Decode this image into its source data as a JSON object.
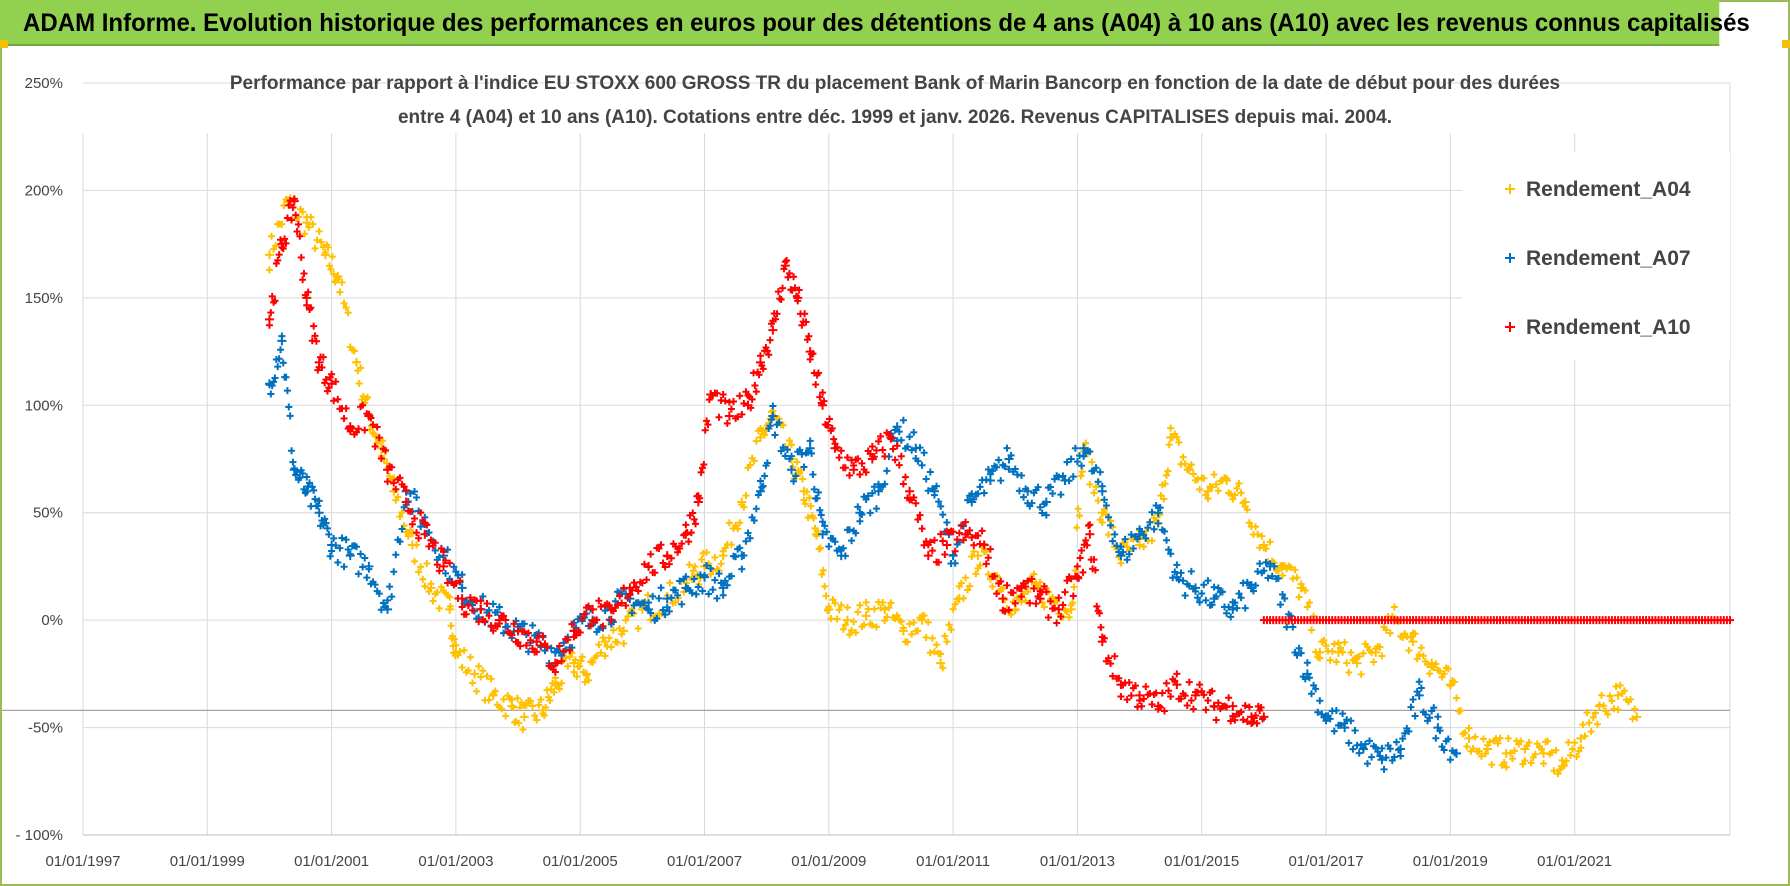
{
  "banner": {
    "title": "ADAM Informe. Evolution historique des performances en euros pour des détentions de 4 ans (A04) à 10 ans (A10) avec les revenus connus capitalisés"
  },
  "colors": {
    "banner_bg": "#92d050",
    "A04": "#ffc000",
    "A07": "#0070c0",
    "A10": "#ff0000",
    "grid": "#d9d9d9",
    "text": "#444444"
  },
  "chart_data": {
    "type": "scatter",
    "title_lines": [
      "Performance par rapport à l'indice EU STOXX 600 GROSS TR  du placement Bank of Marin Bancorp en fonction de la date de début pour des durées",
      "entre 4 (A04) et 10 ans (A10). Cotations entre déc. 1999 et janv. 2026. Revenus CAPITALISES depuis mai. 2004."
    ],
    "xlabel": "",
    "ylabel": "",
    "xlim": [
      1997.0,
      2023.5
    ],
    "ylim": [
      -100,
      250
    ],
    "x_ticks": [
      1997,
      1999,
      2001,
      2003,
      2005,
      2007,
      2009,
      2011,
      2013,
      2015,
      2017,
      2019,
      2021
    ],
    "x_tick_labels": [
      "01/01/1997",
      "01/01/1999",
      "01/01/2001",
      "01/01/2003",
      "01/01/2005",
      "01/01/2007",
      "01/01/2009",
      "01/01/2011",
      "01/01/2013",
      "01/01/2015",
      "01/01/2017",
      "01/01/2019",
      "01/01/2021"
    ],
    "y_ticks": [
      -100,
      -50,
      0,
      50,
      100,
      150,
      200,
      250
    ],
    "y_tick_labels": [
      "- 100%",
      "-50%",
      "0%",
      "50%",
      "100%",
      "150%",
      "200%",
      "250%"
    ],
    "reference_line_y": -42,
    "marker": "+",
    "legend_position": "top-right",
    "series": [
      {
        "name": "Rendement_A04",
        "key": "A04",
        "x": [
          2000.0,
          2000.3,
          2000.6,
          2000.9,
          2001.1,
          2001.4,
          2001.6,
          2001.8,
          2002.0,
          2002.3,
          2002.6,
          2002.9,
          2003.0,
          2003.3,
          2003.6,
          2003.9,
          2004.1,
          2004.4,
          2004.6,
          2004.9,
          2005.1,
          2005.4,
          2005.7,
          2006.0,
          2006.4,
          2006.8,
          2007.0,
          2007.3,
          2007.6,
          2007.9,
          2008.1,
          2008.4,
          2008.6,
          2008.8,
          2009.0,
          2009.3,
          2009.6,
          2009.9,
          2010.2,
          2010.5,
          2010.8,
          2011.1,
          2011.4,
          2011.7,
          2012.0,
          2012.3,
          2012.6,
          2012.9,
          2013.1,
          2013.4,
          2013.7,
          2014.0,
          2014.3,
          2014.5,
          2014.8,
          2015.1,
          2015.4,
          2015.7,
          2016.0,
          2016.3,
          2016.6,
          2016.9,
          2017.2,
          2017.5,
          2017.8,
          2018.1,
          2018.4,
          2018.7,
          2019.0,
          2019.3,
          2019.6,
          2019.9,
          2020.2,
          2020.5,
          2020.8,
          2021.1,
          2021.4,
          2021.7,
          2022.0
        ],
        "y": [
          170,
          195,
          185,
          170,
          160,
          120,
          95,
          80,
          60,
          35,
          15,
          5,
          -15,
          -25,
          -35,
          -40,
          -45,
          -42,
          -30,
          -20,
          -25,
          -10,
          -5,
          5,
          10,
          20,
          25,
          30,
          55,
          85,
          95,
          75,
          60,
          40,
          5,
          0,
          2,
          5,
          -5,
          0,
          -20,
          10,
          30,
          20,
          5,
          15,
          10,
          5,
          80,
          50,
          30,
          35,
          45,
          85,
          70,
          60,
          65,
          55,
          35,
          25,
          15,
          -15,
          -15,
          -20,
          -15,
          0,
          -10,
          -20,
          -30,
          -55,
          -60,
          -62,
          -60,
          -62,
          -68,
          -55,
          -40,
          -35,
          -45
        ]
      },
      {
        "name": "Rendement_A07",
        "key": "A07",
        "x": [
          2000.0,
          2000.2,
          2000.4,
          2000.6,
          2000.8,
          2001.0,
          2001.3,
          2001.6,
          2001.9,
          2002.2,
          2002.5,
          2002.8,
          2003.1,
          2003.4,
          2003.7,
          2004.0,
          2004.3,
          2004.6,
          2004.9,
          2005.2,
          2005.5,
          2005.8,
          2006.1,
          2006.4,
          2006.7,
          2007.0,
          2007.3,
          2007.6,
          2007.9,
          2008.1,
          2008.4,
          2008.7,
          2008.9,
          2009.2,
          2009.5,
          2009.8,
          2010.1,
          2010.4,
          2010.7,
          2011.0,
          2011.3,
          2011.6,
          2011.9,
          2012.2,
          2012.5,
          2012.8,
          2013.1,
          2013.4,
          2013.7,
          2014.0,
          2014.3,
          2014.6,
          2014.9,
          2015.2,
          2015.5,
          2015.8,
          2016.1,
          2016.4,
          2016.7,
          2017.0,
          2017.3,
          2017.6,
          2017.9,
          2018.2,
          2018.5,
          2018.8,
          2019.1
        ],
        "y": [
          110,
          130,
          70,
          60,
          50,
          35,
          30,
          25,
          5,
          60,
          45,
          30,
          15,
          5,
          0,
          -5,
          -10,
          -15,
          -5,
          0,
          5,
          10,
          5,
          10,
          15,
          20,
          15,
          30,
          60,
          95,
          70,
          80,
          40,
          30,
          50,
          60,
          90,
          80,
          60,
          30,
          55,
          65,
          75,
          60,
          55,
          65,
          80,
          60,
          30,
          40,
          50,
          20,
          15,
          10,
          5,
          15,
          25,
          0,
          -25,
          -45,
          -50,
          -60,
          -65,
          -60,
          -35,
          -50,
          -62
        ]
      },
      {
        "name": "Rendement_A10",
        "key": "A10",
        "x": [
          2000.0,
          2000.2,
          2000.4,
          2000.6,
          2000.8,
          2001.0,
          2001.3,
          2001.6,
          2001.9,
          2002.2,
          2002.5,
          2002.8,
          2003.1,
          2003.4,
          2003.7,
          2004.0,
          2004.3,
          2004.6,
          2004.9,
          2005.2,
          2005.5,
          2005.8,
          2006.1,
          2006.4,
          2006.7,
          2006.9,
          2007.1,
          2007.4,
          2007.7,
          2007.9,
          2008.1,
          2008.3,
          2008.5,
          2008.7,
          2008.9,
          2009.1,
          2009.4,
          2009.7,
          2010.0,
          2010.3,
          2010.6,
          2010.9,
          2011.2,
          2011.5,
          2011.8,
          2012.1,
          2012.4,
          2012.7,
          2013.0,
          2013.2,
          2013.4,
          2013.7,
          2014.0,
          2014.3,
          2014.6,
          2014.9,
          2015.2,
          2015.5,
          2015.8,
          2016.0
        ],
        "y": [
          140,
          175,
          195,
          150,
          120,
          110,
          90,
          95,
          70,
          55,
          40,
          25,
          10,
          5,
          0,
          -5,
          -10,
          -20,
          -5,
          5,
          0,
          15,
          25,
          30,
          40,
          55,
          105,
          95,
          100,
          120,
          135,
          165,
          150,
          125,
          100,
          80,
          70,
          75,
          85,
          60,
          30,
          35,
          40,
          35,
          10,
          15,
          10,
          5,
          20,
          40,
          -10,
          -30,
          -35,
          -40,
          -30,
          -35,
          -40,
          -40,
          -45,
          -45
        ]
      }
    ],
    "flat_series": {
      "key": "A10",
      "x_start": 2016.0,
      "x_end": 2023.5,
      "y": 0
    }
  }
}
